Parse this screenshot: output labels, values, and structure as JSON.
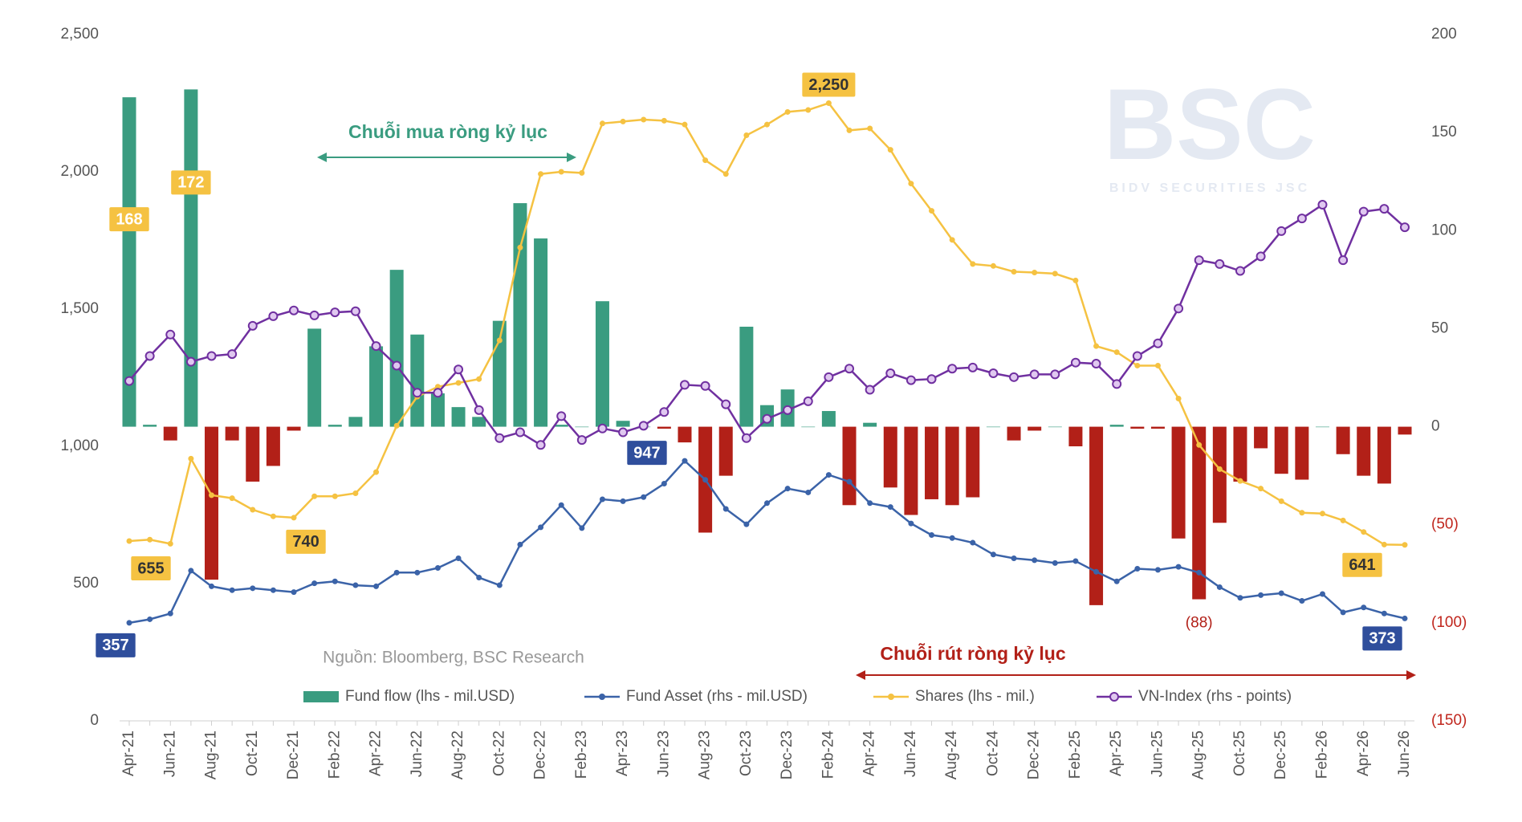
{
  "chart_data": {
    "type": "combo",
    "categories": [
      "Apr-21",
      null,
      "Jun-21",
      null,
      "Aug-21",
      null,
      "Oct-21",
      null,
      "Dec-21",
      null,
      "Feb-22",
      null,
      "Apr-22",
      null,
      "Jun-22",
      null,
      "Aug-22",
      null,
      "Oct-22",
      null,
      "Dec-22",
      null,
      "Feb-23",
      null,
      "Apr-23",
      null,
      "Jun-23",
      null,
      "Aug-23",
      null,
      "Oct-23",
      null,
      "Dec-23",
      null,
      "Feb-24",
      null,
      "Apr-24",
      null,
      "Jun-24",
      null,
      "Aug-24",
      null,
      "Oct-24",
      null,
      "Dec-24",
      null,
      "Feb-25",
      null,
      "Apr-25",
      null,
      "Jun-25",
      null,
      "Aug-25",
      null,
      "Oct-25",
      null,
      "Dec-25",
      null,
      "Feb-26",
      null,
      "Apr-26",
      null,
      "Jun-26"
    ],
    "series": [
      {
        "name": "Fund flow (lhs - mil.USD)",
        "type": "bar",
        "axis": "y2",
        "color": "#3a9c80",
        "negative_color": "#b22018",
        "values": [
          168,
          1,
          -7,
          172,
          -78,
          -7,
          -28,
          -20,
          -2,
          50,
          1,
          5,
          41,
          80,
          47,
          17,
          10,
          5,
          54,
          114,
          96,
          1,
          0,
          64,
          3,
          0,
          -1,
          -8,
          -54,
          -25,
          51,
          11,
          19,
          0,
          8,
          -40,
          2,
          -31,
          -45,
          -37,
          -40,
          -36,
          0,
          -7,
          -2,
          0,
          -10,
          -91,
          1,
          -1,
          -1,
          -57,
          -88,
          -49,
          -28,
          -11,
          -24,
          -27,
          0,
          -14,
          -25,
          -29,
          -4
        ],
        "value_labels": [
          "168",
          null,
          null,
          "172",
          null,
          null,
          null,
          null,
          null,
          null,
          null,
          null,
          null,
          null,
          null,
          null,
          null,
          null,
          null,
          null,
          null,
          null,
          null,
          null,
          null,
          null,
          null,
          null,
          null,
          null,
          null,
          null,
          null,
          null,
          null,
          null,
          null,
          null,
          null,
          null,
          null,
          null,
          null,
          null,
          null,
          null,
          null,
          null,
          null,
          null,
          null,
          null,
          "(88)",
          null,
          null,
          null,
          null,
          null,
          null,
          null,
          null,
          null,
          null
        ]
      },
      {
        "name": "Fund Asset (rhs - mil.USD)",
        "type": "line",
        "color": "#3b63a8",
        "values": [
          357,
          370,
          391,
          547,
          490,
          476,
          483,
          476,
          469,
          501,
          508,
          494,
          490,
          540,
          540,
          557,
          592,
          522,
          494,
          642,
          705,
          786,
          702,
          807,
          800,
          815,
          864,
          947,
          878,
          772,
          716,
          793,
          846,
          832,
          896,
          871,
          793,
          779,
          719,
          677,
          666,
          649,
          606,
          592,
          585,
          575,
          582,
          543,
          508,
          554,
          550,
          561,
          540,
          487,
          448,
          458,
          465,
          437,
          462,
          395,
          413,
          391,
          373
        ],
        "value_labels": [
          "357",
          null,
          null,
          null,
          null,
          null,
          null,
          null,
          null,
          null,
          null,
          null,
          null,
          null,
          null,
          null,
          null,
          null,
          null,
          null,
          null,
          null,
          null,
          null,
          null,
          null,
          null,
          "947",
          null,
          null,
          null,
          null,
          null,
          null,
          null,
          null,
          null,
          null,
          null,
          null,
          null,
          null,
          null,
          null,
          null,
          null,
          null,
          null,
          null,
          null,
          null,
          null,
          null,
          null,
          null,
          null,
          null,
          null,
          null,
          null,
          null,
          null,
          "373"
        ]
      },
      {
        "name": "Shares (lhs - mil.)",
        "type": "line",
        "color": "#f5c242",
        "values": [
          655,
          660,
          645,
          955,
          822,
          811,
          769,
          745,
          740,
          818,
          818,
          829,
          906,
          1075,
          1181,
          1217,
          1231,
          1245,
          1386,
          1724,
          1992,
          2000,
          1996,
          2176,
          2183,
          2190,
          2186,
          2172,
          2042,
          1992,
          2133,
          2172,
          2218,
          2225,
          2250,
          2151,
          2158,
          2080,
          1957,
          1858,
          1752,
          1664,
          1657,
          1636,
          1633,
          1629,
          1604,
          1365,
          1343,
          1294,
          1294,
          1174,
          1005,
          917,
          874,
          846,
          800,
          758,
          755,
          730,
          688,
          642,
          641
        ],
        "value_labels": [
          "655",
          null,
          null,
          null,
          null,
          null,
          null,
          null,
          "740",
          null,
          null,
          null,
          null,
          null,
          null,
          null,
          null,
          null,
          null,
          null,
          null,
          null,
          null,
          null,
          null,
          null,
          null,
          null,
          null,
          null,
          null,
          null,
          null,
          null,
          "2,250",
          null,
          null,
          null,
          null,
          null,
          null,
          null,
          null,
          null,
          null,
          null,
          null,
          null,
          null,
          null,
          null,
          null,
          null,
          null,
          null,
          null,
          null,
          null,
          null,
          null,
          null,
          null,
          "641"
        ]
      },
      {
        "name": "VN-Index (rhs - points)",
        "type": "line",
        "color": "#7030a0",
        "values": [
          1238,
          1329,
          1407,
          1308,
          1329,
          1336,
          1439,
          1474,
          1495,
          1477,
          1488,
          1492,
          1365,
          1294,
          1195,
          1195,
          1280,
          1132,
          1030,
          1051,
          1005,
          1110,
          1023,
          1065,
          1051,
          1075,
          1125,
          1224,
          1220,
          1153,
          1030,
          1100,
          1132,
          1164,
          1252,
          1283,
          1206,
          1266,
          1241,
          1245,
          1283,
          1287,
          1266,
          1252,
          1262,
          1262,
          1305,
          1301,
          1227,
          1329,
          1375,
          1502,
          1678,
          1664,
          1639,
          1692,
          1784,
          1830,
          1880,
          1678,
          1855,
          1865,
          1798
        ]
      }
    ],
    "ylim": [
      0,
      2500
    ],
    "yticks": [
      0,
      500,
      {
        "value": 1000,
        "label": "1,000"
      },
      {
        "value": 1500,
        "label": "1,500"
      },
      {
        "value": 2000,
        "label": "2,000"
      },
      {
        "value": 2500,
        "label": "2,500"
      }
    ],
    "y2lim": [
      -150,
      200
    ],
    "y2ticks": [
      {
        "value": -150,
        "label": "(150)"
      },
      {
        "value": -100,
        "label": "(100)"
      },
      {
        "value": -50,
        "label": "(50)"
      },
      0,
      50,
      100,
      150,
      200
    ],
    "negative_tick_color": "#c0261d",
    "annotations": {
      "buy_streak": "Chuỗi mua ròng kỷ lục",
      "sell_streak": "Chuỗi rút ròng kỷ lục",
      "source": "Nguồn: Bloomberg, BSC Research"
    },
    "watermark": {
      "logo": "BSC",
      "company": "BIDV SECURITIES JSC"
    },
    "legend": "bottom",
    "grid": false
  }
}
